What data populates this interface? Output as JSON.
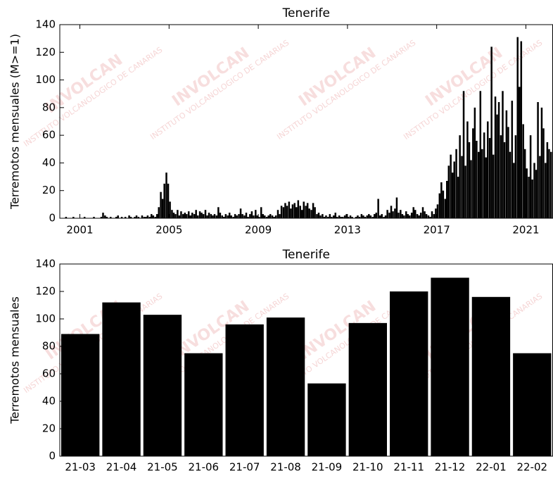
{
  "watermark": [
    "INVOLCAN",
    "INSTITUTO VOLCANOLOGICO DE CANARIAS"
  ],
  "chart_data": [
    {
      "type": "bar",
      "title": "Tenerife",
      "ylabel": "Terremotos mensuales (M>=1)",
      "color": "#000000",
      "xlim": [
        2000.1,
        2022.2
      ],
      "xticks": [
        2001,
        2005,
        2009,
        2013,
        2017,
        2021
      ],
      "ylim": [
        0,
        140
      ],
      "yticks": [
        0,
        20,
        40,
        60,
        80,
        100,
        120,
        140
      ],
      "x": [
        2000.21,
        2000.29,
        2000.38,
        2000.46,
        2000.54,
        2000.63,
        2000.71,
        2000.79,
        2000.88,
        2000.96,
        2001.04,
        2001.13,
        2001.21,
        2001.29,
        2001.38,
        2001.46,
        2001.54,
        2001.63,
        2001.71,
        2001.79,
        2001.88,
        2001.96,
        2002.04,
        2002.13,
        2002.21,
        2002.29,
        2002.38,
        2002.46,
        2002.54,
        2002.63,
        2002.71,
        2002.79,
        2002.88,
        2002.96,
        2003.04,
        2003.13,
        2003.21,
        2003.29,
        2003.38,
        2003.46,
        2003.54,
        2003.63,
        2003.71,
        2003.79,
        2003.88,
        2003.96,
        2004.04,
        2004.13,
        2004.21,
        2004.29,
        2004.38,
        2004.46,
        2004.54,
        2004.63,
        2004.71,
        2004.79,
        2004.88,
        2004.96,
        2005.04,
        2005.13,
        2005.21,
        2005.29,
        2005.38,
        2005.46,
        2005.54,
        2005.63,
        2005.71,
        2005.79,
        2005.88,
        2005.96,
        2006.04,
        2006.13,
        2006.21,
        2006.29,
        2006.38,
        2006.46,
        2006.54,
        2006.63,
        2006.71,
        2006.79,
        2006.88,
        2006.96,
        2007.04,
        2007.13,
        2007.21,
        2007.29,
        2007.38,
        2007.46,
        2007.54,
        2007.63,
        2007.71,
        2007.79,
        2007.88,
        2007.96,
        2008.04,
        2008.13,
        2008.21,
        2008.29,
        2008.38,
        2008.46,
        2008.54,
        2008.63,
        2008.71,
        2008.79,
        2008.88,
        2008.96,
        2009.04,
        2009.13,
        2009.21,
        2009.29,
        2009.38,
        2009.46,
        2009.54,
        2009.63,
        2009.71,
        2009.79,
        2009.88,
        2009.96,
        2010.04,
        2010.13,
        2010.21,
        2010.29,
        2010.38,
        2010.46,
        2010.54,
        2010.63,
        2010.71,
        2010.79,
        2010.88,
        2010.96,
        2011.04,
        2011.13,
        2011.21,
        2011.29,
        2011.38,
        2011.46,
        2011.54,
        2011.63,
        2011.71,
        2011.79,
        2011.88,
        2011.96,
        2012.04,
        2012.13,
        2012.21,
        2012.29,
        2012.38,
        2012.46,
        2012.54,
        2012.63,
        2012.71,
        2012.79,
        2012.88,
        2012.96,
        2013.04,
        2013.13,
        2013.21,
        2013.29,
        2013.38,
        2013.46,
        2013.54,
        2013.63,
        2013.71,
        2013.79,
        2013.88,
        2013.96,
        2014.04,
        2014.13,
        2014.21,
        2014.29,
        2014.38,
        2014.46,
        2014.54,
        2014.63,
        2014.71,
        2014.79,
        2014.88,
        2014.96,
        2015.04,
        2015.13,
        2015.21,
        2015.29,
        2015.38,
        2015.46,
        2015.54,
        2015.63,
        2015.71,
        2015.79,
        2015.88,
        2015.96,
        2016.04,
        2016.13,
        2016.21,
        2016.29,
        2016.38,
        2016.46,
        2016.54,
        2016.63,
        2016.71,
        2016.79,
        2016.88,
        2016.96,
        2017.04,
        2017.13,
        2017.21,
        2017.29,
        2017.38,
        2017.46,
        2017.54,
        2017.63,
        2017.71,
        2017.79,
        2017.88,
        2017.96,
        2018.04,
        2018.13,
        2018.21,
        2018.29,
        2018.38,
        2018.46,
        2018.54,
        2018.63,
        2018.71,
        2018.79,
        2018.88,
        2018.96,
        2019.04,
        2019.13,
        2019.21,
        2019.29,
        2019.38,
        2019.46,
        2019.54,
        2019.63,
        2019.71,
        2019.79,
        2019.88,
        2019.96,
        2020.04,
        2020.13,
        2020.21,
        2020.29,
        2020.38,
        2020.46,
        2020.54,
        2020.63,
        2020.71,
        2020.79,
        2020.88,
        2020.96,
        2021.04,
        2021.13,
        2021.21,
        2021.29,
        2021.38,
        2021.46,
        2021.54,
        2021.63,
        2021.71,
        2021.79,
        2021.88,
        2021.96,
        2022.04,
        2022.13
      ],
      "values": [
        0,
        0,
        1,
        0,
        0,
        0,
        1,
        0,
        0,
        0,
        0,
        0,
        1,
        0,
        0,
        0,
        0,
        1,
        0,
        0,
        0,
        1,
        4,
        2,
        1,
        0,
        1,
        0,
        0,
        1,
        2,
        0,
        1,
        0,
        1,
        0,
        2,
        1,
        0,
        1,
        2,
        1,
        0,
        2,
        1,
        1,
        2,
        1,
        3,
        2,
        1,
        3,
        8,
        19,
        14,
        25,
        33,
        25,
        12,
        6,
        4,
        3,
        6,
        2,
        5,
        3,
        4,
        3,
        5,
        2,
        4,
        3,
        6,
        2,
        5,
        4,
        3,
        6,
        2,
        4,
        3,
        2,
        3,
        2,
        8,
        4,
        2,
        1,
        3,
        2,
        4,
        2,
        1,
        3,
        2,
        3,
        7,
        3,
        2,
        4,
        1,
        3,
        5,
        2,
        6,
        2,
        1,
        8,
        3,
        2,
        1,
        2,
        3,
        2,
        1,
        2,
        6,
        3,
        9,
        8,
        11,
        9,
        12,
        7,
        10,
        11,
        8,
        13,
        9,
        6,
        12,
        9,
        11,
        7,
        6,
        11,
        8,
        3,
        4,
        2,
        3,
        1,
        2,
        1,
        3,
        1,
        2,
        4,
        1,
        2,
        1,
        1,
        2,
        3,
        1,
        2,
        1,
        0,
        1,
        2,
        1,
        3,
        2,
        1,
        2,
        3,
        2,
        1,
        3,
        4,
        14,
        2,
        3,
        1,
        2,
        6,
        4,
        9,
        5,
        7,
        15,
        4,
        6,
        3,
        2,
        5,
        3,
        2,
        4,
        8,
        6,
        3,
        2,
        4,
        8,
        5,
        3,
        2,
        1,
        5,
        3,
        7,
        10,
        18,
        26,
        20,
        14,
        27,
        38,
        46,
        33,
        41,
        50,
        30,
        60,
        45,
        92,
        38,
        70,
        55,
        42,
        65,
        80,
        56,
        48,
        92,
        50,
        62,
        44,
        70,
        58,
        124,
        46,
        88,
        75,
        84,
        60,
        92,
        55,
        78,
        66,
        48,
        85,
        40,
        60,
        131,
        95,
        128,
        68,
        50,
        36,
        30,
        60,
        28,
        40,
        35,
        84,
        45,
        80,
        65,
        40,
        55,
        50,
        48
      ]
    },
    {
      "type": "bar",
      "title": "Tenerife",
      "ylabel": "Terremotos mensuales",
      "color": "#000000",
      "ylim": [
        0,
        140
      ],
      "yticks": [
        0,
        20,
        40,
        60,
        80,
        100,
        120,
        140
      ],
      "categories": [
        "21-03",
        "21-04",
        "21-05",
        "21-06",
        "21-07",
        "21-08",
        "21-09",
        "21-10",
        "21-11",
        "21-12",
        "22-01",
        "22-02"
      ],
      "values": [
        89,
        112,
        103,
        75,
        96,
        101,
        53,
        97,
        120,
        130,
        116,
        75
      ]
    }
  ]
}
